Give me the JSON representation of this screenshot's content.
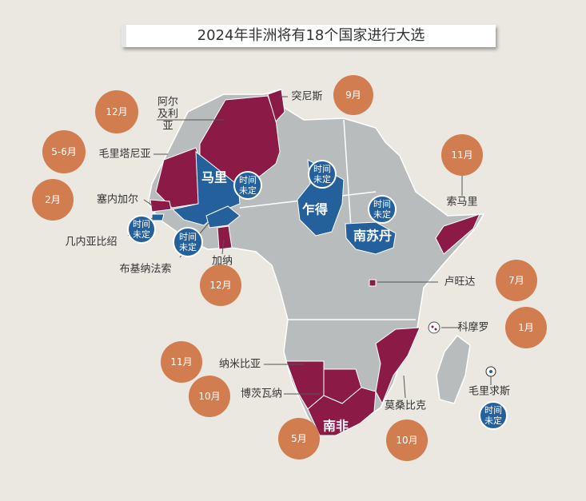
{
  "title": "2024年非洲将有18个国家进行大选",
  "countries": [
    {
      "name": "阿尔及利亚",
      "date": "12月",
      "color": "#d27d4f"
    },
    {
      "name": "突尼斯",
      "date": "9月",
      "color": "#d27d4f"
    },
    {
      "name": "毛里塔尼亚",
      "date": "5-6月",
      "color": "#d27d4f"
    },
    {
      "name": "塞内加尔",
      "date": "2月",
      "color": "#d27d4f"
    },
    {
      "name": "几内亚比绍",
      "date": "时间未定",
      "color": "#24609c"
    },
    {
      "name": "马里",
      "date": "时间未定",
      "color": "#24609c"
    },
    {
      "name": "布基纳法索",
      "date": "时间未定",
      "color": "#24609c"
    },
    {
      "name": "加纳",
      "date": "12月",
      "color": "#d27d4f"
    },
    {
      "name": "乍得",
      "date": "时间未定",
      "color": "#24609c"
    },
    {
      "name": "南苏丹",
      "date": "时间未定",
      "color": "#24609c"
    },
    {
      "name": "索马里",
      "date": "11月",
      "color": "#d27d4f"
    },
    {
      "name": "卢旺达",
      "date": "7月",
      "color": "#d27d4f"
    },
    {
      "name": "科摩罗",
      "date": "1月",
      "color": "#d27d4f"
    },
    {
      "name": "毛里求斯",
      "date": "时间未定",
      "color": "#24609c"
    },
    {
      "name": "纳米比亚",
      "date": "11月",
      "color": "#d27d4f"
    },
    {
      "name": "博茨瓦纳",
      "date": "10月",
      "color": "#d27d4f"
    },
    {
      "name": "南非",
      "date": "5月",
      "color": "#d27d4f"
    },
    {
      "name": "莫桑比克",
      "date": "10月",
      "color": "#d27d4f"
    }
  ]
}
